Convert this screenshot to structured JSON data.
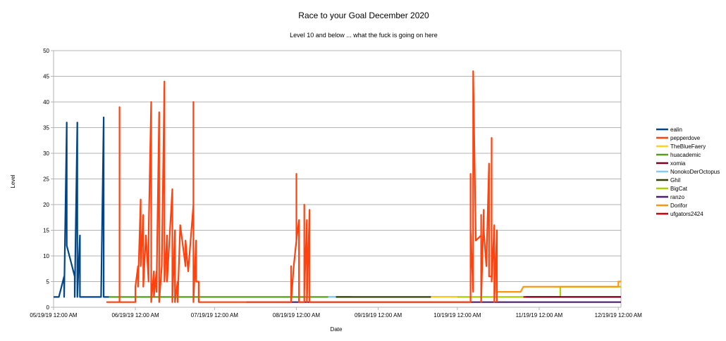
{
  "chart_data": {
    "type": "line",
    "title": "Race to your Goal December 2020",
    "subtitle": "Level 10 and below ... what the fuck is going on here",
    "xlabel": "Date",
    "ylabel": "Level",
    "ylim": [
      0,
      50
    ],
    "yticks": [
      0,
      5,
      10,
      15,
      20,
      25,
      30,
      35,
      40,
      45,
      50
    ],
    "xlim": [
      "2019-05-19",
      "2019-12-20"
    ],
    "xticks": [
      "05/19/19 12:00 AM",
      "06/19/19 12:00 AM",
      "07/19/19 12:00 AM",
      "08/19/19 12:00 AM",
      "09/19/19 12:00 AM",
      "10/19/19 12:00 AM",
      "11/19/19 12:00 AM",
      "12/19/19 12:00 AM"
    ],
    "grid": "horizontal",
    "legend_position": "right",
    "series": [
      {
        "name": "ealin",
        "color": "#004586",
        "points": [
          [
            "2019-05-19",
            2
          ],
          [
            "2019-05-21",
            2
          ],
          [
            "2019-05-23",
            6
          ],
          [
            "2019-05-23",
            2
          ],
          [
            "2019-05-24",
            36
          ],
          [
            "2019-05-24",
            12
          ],
          [
            "2019-05-27",
            6
          ],
          [
            "2019-05-27",
            2
          ],
          [
            "2019-05-28",
            36
          ],
          [
            "2019-05-28",
            2
          ],
          [
            "2019-05-29",
            14
          ],
          [
            "2019-05-29",
            2
          ],
          [
            "2019-06-06",
            2
          ],
          [
            "2019-06-07",
            37
          ],
          [
            "2019-06-07",
            2
          ],
          [
            "2019-06-09",
            2
          ]
        ]
      },
      {
        "name": "pepperdove",
        "color": "#ff420e",
        "points": [
          [
            "2019-06-08",
            1
          ],
          [
            "2019-06-13",
            1
          ],
          [
            "2019-06-13",
            39
          ],
          [
            "2019-06-13",
            1
          ],
          [
            "2019-06-19",
            1
          ],
          [
            "2019-06-19",
            4
          ],
          [
            "2019-06-20",
            8
          ],
          [
            "2019-06-20",
            4
          ],
          [
            "2019-06-21",
            21
          ],
          [
            "2019-06-21",
            8
          ],
          [
            "2019-06-22",
            18
          ],
          [
            "2019-06-22",
            4
          ],
          [
            "2019-06-23",
            14
          ],
          [
            "2019-06-24",
            5
          ],
          [
            "2019-06-24",
            14
          ],
          [
            "2019-06-25",
            40
          ],
          [
            "2019-06-25",
            1
          ],
          [
            "2019-06-26",
            7
          ],
          [
            "2019-06-26",
            2
          ],
          [
            "2019-06-27",
            7
          ],
          [
            "2019-06-27",
            3
          ],
          [
            "2019-06-28",
            38
          ],
          [
            "2019-06-28",
            1
          ],
          [
            "2019-06-29",
            8
          ],
          [
            "2019-06-30",
            44
          ],
          [
            "2019-06-30",
            5
          ],
          [
            "2019-07-01",
            14
          ],
          [
            "2019-07-01",
            5
          ],
          [
            "2019-07-03",
            23
          ],
          [
            "2019-07-03",
            1
          ],
          [
            "2019-07-04",
            15
          ],
          [
            "2019-07-04",
            1
          ],
          [
            "2019-07-05",
            5
          ],
          [
            "2019-07-05",
            1
          ],
          [
            "2019-07-06",
            16
          ],
          [
            "2019-07-08",
            8
          ],
          [
            "2019-07-08",
            13
          ],
          [
            "2019-07-09",
            7
          ],
          [
            "2019-07-11",
            20
          ],
          [
            "2019-07-11",
            40
          ],
          [
            "2019-07-11",
            1
          ],
          [
            "2019-07-12",
            13
          ],
          [
            "2019-07-12",
            5
          ],
          [
            "2019-07-13",
            5
          ],
          [
            "2019-07-13",
            1
          ],
          [
            "2019-08-17",
            1
          ],
          [
            "2019-08-17",
            8
          ],
          [
            "2019-08-17",
            1
          ],
          [
            "2019-08-18",
            8
          ],
          [
            "2019-08-19",
            13
          ],
          [
            "2019-08-19",
            26
          ],
          [
            "2019-08-19",
            13
          ],
          [
            "2019-08-20",
            17
          ],
          [
            "2019-08-20",
            1
          ],
          [
            "2019-08-22",
            1
          ],
          [
            "2019-08-22",
            20
          ],
          [
            "2019-08-22",
            3
          ],
          [
            "2019-08-23",
            17
          ],
          [
            "2019-08-23",
            1
          ],
          [
            "2019-08-24",
            19
          ],
          [
            "2019-08-24",
            1
          ],
          [
            "2019-10-24",
            1
          ],
          [
            "2019-10-24",
            26
          ],
          [
            "2019-10-24",
            15
          ],
          [
            "2019-10-25",
            3
          ],
          [
            "2019-10-25",
            46
          ],
          [
            "2019-10-26",
            13
          ],
          [
            "2019-10-28",
            14
          ],
          [
            "2019-10-28",
            18
          ],
          [
            "2019-10-28",
            1
          ],
          [
            "2019-10-29",
            19
          ],
          [
            "2019-10-29",
            15
          ],
          [
            "2019-10-30",
            8
          ],
          [
            "2019-10-31",
            28
          ],
          [
            "2019-10-31",
            6
          ],
          [
            "2019-11-01",
            6
          ],
          [
            "2019-11-01",
            33
          ],
          [
            "2019-11-01",
            5
          ],
          [
            "2019-11-02",
            16
          ],
          [
            "2019-11-02",
            1
          ],
          [
            "2019-11-03",
            15
          ],
          [
            "2019-11-03",
            1
          ]
        ]
      },
      {
        "name": "TheBlueFaery",
        "color": "#ffd320",
        "points": [
          [
            "2019-10-09",
            2
          ],
          [
            "2019-11-14",
            2
          ]
        ]
      },
      {
        "name": "huacademic",
        "color": "#579d1c",
        "points": [
          [
            "2019-06-09",
            2
          ],
          [
            "2019-09-09",
            2
          ]
        ]
      },
      {
        "name": "xomia",
        "color": "#7e0021",
        "points": [
          [
            "2019-11-14",
            2
          ],
          [
            "2019-12-20",
            2
          ]
        ]
      },
      {
        "name": "NonokoDerOctopus",
        "color": "#83caff",
        "points": [
          [
            "2019-08-31",
            2
          ],
          [
            "2019-09-03",
            2
          ]
        ]
      },
      {
        "name": "Ghil",
        "color": "#314004",
        "points": [
          [
            "2019-09-03",
            2
          ],
          [
            "2019-10-19",
            2
          ]
        ]
      },
      {
        "name": "BigCat",
        "color": "#aecf00",
        "points": [
          [
            "2019-10-19",
            2
          ],
          [
            "2019-11-13",
            2
          ],
          [
            "2019-11-27",
            2
          ],
          [
            "2019-11-27",
            4
          ],
          [
            "2019-12-20",
            4
          ]
        ]
      },
      {
        "name": "ranzo",
        "color": "#4b1f6f",
        "points": [
          [
            "2019-07-31",
            1
          ],
          [
            "2019-12-20",
            1
          ]
        ]
      },
      {
        "name": "Dorifor",
        "color": "#ff950e",
        "points": [
          [
            "2019-11-03",
            3
          ],
          [
            "2019-11-12",
            3
          ],
          [
            "2019-11-13",
            4
          ],
          [
            "2019-12-19",
            4
          ],
          [
            "2019-12-19",
            5
          ],
          [
            "2019-12-20",
            5
          ]
        ]
      },
      {
        "name": "ufgators2424",
        "color": "#c5000b",
        "points": [
          [
            "2019-11-13",
            2
          ],
          [
            "2019-12-20",
            2
          ]
        ]
      }
    ]
  }
}
